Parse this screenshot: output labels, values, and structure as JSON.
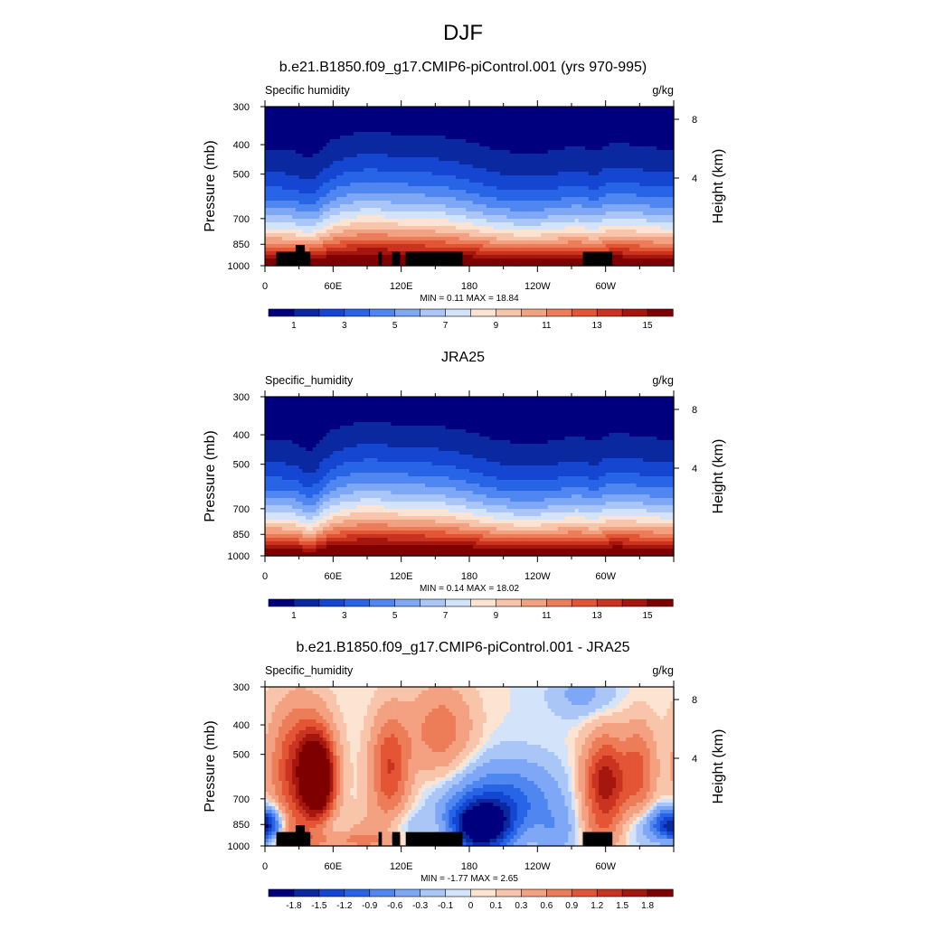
{
  "figure": {
    "main_title": "DJF"
  },
  "chart_data": [
    {
      "type": "heatmap",
      "title": "b.e21.B1850.f09_g17.CMIP6-piControl.001 (yrs 970-995)",
      "variable_label": "Specific humidity",
      "units": "g/kg",
      "ylabel": "Pressure (mb)",
      "ylabel_right": "Height (km)",
      "y_ticks": [
        "300",
        "400",
        "500",
        "700",
        "850",
        "1000"
      ],
      "y_tick_values": [
        300,
        400,
        500,
        700,
        850,
        1000
      ],
      "y_right_ticks": [
        "8",
        "4"
      ],
      "x_ticks": [
        "0",
        "60E",
        "120E",
        "180",
        "120W",
        "60W"
      ],
      "x_tick_lon": [
        0,
        60,
        120,
        180,
        240,
        300
      ],
      "x_range_lon": [
        0,
        360
      ],
      "stats_text": "MIN =   0.11  MAX =  18.84",
      "min": 0.11,
      "max": 18.84,
      "colorbar_labels": [
        "1",
        "3",
        "5",
        "7",
        "9",
        "11",
        "13",
        "15"
      ],
      "colorbar_colors": [
        "#00007f",
        "#0a28a0",
        "#1446d2",
        "#2864e6",
        "#4f86f0",
        "#7ea7f5",
        "#a9c6f7",
        "#d2e3fa",
        "#fde4d2",
        "#f8c4aa",
        "#f3a180",
        "#ec7d58",
        "#e35535",
        "#c9331f",
        "#a5160e",
        "#7e0000"
      ],
      "colorbar_levels": [
        0,
        1,
        2,
        3,
        4,
        5,
        6,
        7,
        8,
        9,
        10,
        11,
        12,
        13,
        14,
        15,
        16
      ],
      "topography_masked": true,
      "grid": false
    },
    {
      "type": "heatmap",
      "title": "JRA25",
      "variable_label": "Specific_humidity",
      "units": "g/kg",
      "ylabel": "Pressure (mb)",
      "ylabel_right": "Height (km)",
      "y_ticks": [
        "300",
        "400",
        "500",
        "700",
        "850",
        "1000"
      ],
      "y_tick_values": [
        300,
        400,
        500,
        700,
        850,
        1000
      ],
      "y_right_ticks": [
        "8",
        "4"
      ],
      "x_ticks": [
        "0",
        "60E",
        "120E",
        "180",
        "120W",
        "60W"
      ],
      "x_tick_lon": [
        0,
        60,
        120,
        180,
        240,
        300
      ],
      "x_range_lon": [
        0,
        360
      ],
      "stats_text": "MIN =   0.14  MAX =  18.02",
      "min": 0.14,
      "max": 18.02,
      "colorbar_labels": [
        "1",
        "3",
        "5",
        "7",
        "9",
        "11",
        "13",
        "15"
      ],
      "colorbar_colors": [
        "#00007f",
        "#0a28a0",
        "#1446d2",
        "#2864e6",
        "#4f86f0",
        "#7ea7f5",
        "#a9c6f7",
        "#d2e3fa",
        "#fde4d2",
        "#f8c4aa",
        "#f3a180",
        "#ec7d58",
        "#e35535",
        "#c9331f",
        "#a5160e",
        "#7e0000"
      ],
      "colorbar_levels": [
        0,
        1,
        2,
        3,
        4,
        5,
        6,
        7,
        8,
        9,
        10,
        11,
        12,
        13,
        14,
        15,
        16
      ],
      "topography_masked": false,
      "grid": false
    },
    {
      "type": "heatmap",
      "title": "b.e21.B1850.f09_g17.CMIP6-piControl.001 - JRA25",
      "variable_label": "Specific_humidity",
      "units": "g/kg",
      "ylabel": "Pressure (mb)",
      "ylabel_right": "Height (km)",
      "y_ticks": [
        "300",
        "400",
        "500",
        "700",
        "850",
        "1000"
      ],
      "y_tick_values": [
        300,
        400,
        500,
        700,
        850,
        1000
      ],
      "y_right_ticks": [
        "8",
        "4"
      ],
      "x_ticks": [
        "0",
        "60E",
        "120E",
        "180",
        "120W",
        "60W"
      ],
      "x_tick_lon": [
        0,
        60,
        120,
        180,
        240,
        300
      ],
      "x_range_lon": [
        0,
        360
      ],
      "stats_text": "MIN =  -1.77  MAX =   2.65",
      "min": -1.77,
      "max": 2.65,
      "colorbar_labels": [
        "-1.8",
        "-1.5",
        "-1.2",
        "-0.9",
        "-0.6",
        "-0.3",
        "-0.1",
        "0",
        "0.1",
        "0.3",
        "0.6",
        "0.9",
        "1.2",
        "1.5",
        "1.8"
      ],
      "colorbar_colors": [
        "#00007f",
        "#0a28a0",
        "#1446d2",
        "#2864e6",
        "#4f86f0",
        "#7ea7f5",
        "#a9c6f7",
        "#d2e3fa",
        "#fde4d2",
        "#f8c4aa",
        "#f3a180",
        "#ec7d58",
        "#e35535",
        "#c9331f",
        "#a5160e",
        "#7e0000"
      ],
      "colorbar_levels": [
        -2.1,
        -1.8,
        -1.5,
        -1.2,
        -0.9,
        -0.6,
        -0.3,
        -0.1,
        0,
        0.1,
        0.3,
        0.6,
        0.9,
        1.2,
        1.5,
        1.8,
        2.1
      ],
      "topography_masked": true,
      "grid": false
    }
  ]
}
